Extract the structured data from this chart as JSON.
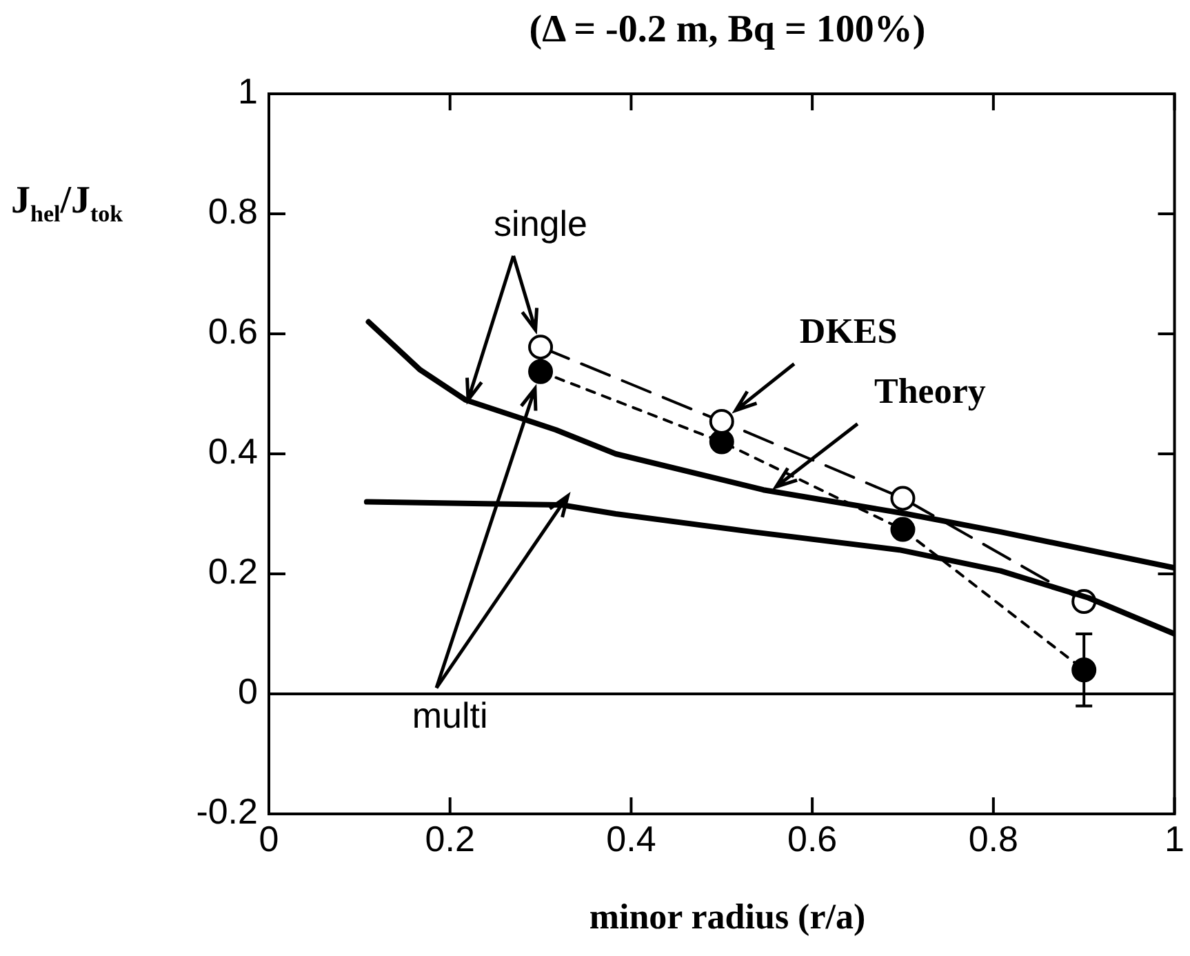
{
  "chart_data": {
    "type": "line",
    "title": "(Δ = -0.2 m, Bq = 100%)",
    "xlabel": "minor radius (r/a)",
    "ylabel": "J$_{hel}$/J$_{tok}$",
    "xlim": [
      0,
      1
    ],
    "ylim": [
      -0.2,
      1
    ],
    "xticks": [
      0,
      0.2,
      0.4,
      0.6,
      0.8,
      1
    ],
    "yticks": [
      -0.2,
      0,
      0.2,
      0.4,
      0.6,
      0.8,
      1
    ],
    "grid": false,
    "legend": false,
    "series": [
      {
        "color": "#000000",
        "marker": "none",
        "line_style": "solid",
        "x": [
          0.11,
          0.167,
          0.217,
          0.317,
          0.383,
          0.546,
          0.704,
          0.808,
          1.0
        ],
        "values": [
          0.62,
          0.54,
          0.49,
          0.44,
          0.4,
          0.34,
          0.3,
          0.27,
          0.21
        ]
      },
      {
        "color": "#000000",
        "marker": "none",
        "line_style": "solid",
        "x": [
          0.108,
          0.323,
          0.383,
          0.534,
          0.696,
          0.808,
          0.905,
          1.0
        ],
        "values": [
          0.32,
          0.315,
          0.3,
          0.27,
          0.24,
          0.205,
          0.16,
          0.1
        ]
      },
      {
        "color": "#000000",
        "marker": "circle",
        "line_style": "dashed",
        "x": [
          0.3,
          0.5,
          0.7,
          0.9
        ],
        "values": [
          0.578,
          0.454,
          0.326,
          0.154
        ]
      },
      {
        "color": "#000000",
        "marker": "circle",
        "line_style": "dotted",
        "x": [
          0.3,
          0.5,
          0.7,
          0.9
        ],
        "values": [
          0.537,
          0.42,
          0.274,
          0.04
        ],
        "errors": [
          null,
          null,
          null,
          [
            -0.02,
            0.1
          ]
        ]
      }
    ],
    "ref_lines": [
      {
        "axis": "y",
        "value": 0,
        "color": "#000000"
      }
    ],
    "annotations": [
      {
        "text": "single",
        "x": 0.3,
        "y": 0.578
      },
      "multi",
      {
        "text": "DKES",
        "x": 0.5,
        "y": 0.454
      },
      {
        "text": "Theory",
        "x": 0.56,
        "y": 0.345
      }
    ]
  }
}
